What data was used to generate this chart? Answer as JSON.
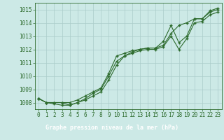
{
  "title": "Graphe pression niveau de la mer (hPa)",
  "x": [
    0,
    1,
    2,
    3,
    4,
    5,
    6,
    7,
    8,
    9,
    10,
    11,
    12,
    13,
    14,
    15,
    16,
    17,
    18,
    19,
    20,
    21,
    22,
    23
  ],
  "line_avg": [
    1008.3,
    1008.0,
    1008.0,
    1008.0,
    1008.0,
    1008.2,
    1008.5,
    1008.8,
    1009.1,
    1010.2,
    1011.5,
    1011.7,
    1011.9,
    1012.0,
    1012.1,
    1012.1,
    1012.6,
    1013.8,
    1012.5,
    1013.0,
    1014.3,
    1014.3,
    1014.8,
    1015.0
  ],
  "line_max": [
    1008.3,
    1008.0,
    1008.0,
    1008.0,
    1007.8,
    1008.0,
    1008.3,
    1008.7,
    1009.0,
    1010.0,
    1011.1,
    1011.5,
    1011.8,
    1012.0,
    1012.1,
    1012.1,
    1012.3,
    1013.2,
    1013.8,
    1014.0,
    1014.3,
    1014.3,
    1014.9,
    1015.1
  ],
  "line_min": [
    1008.3,
    1008.0,
    1007.9,
    1007.8,
    1007.8,
    1008.0,
    1008.2,
    1008.5,
    1008.8,
    1009.7,
    1010.8,
    1011.5,
    1011.7,
    1011.9,
    1012.0,
    1012.0,
    1012.2,
    1013.0,
    1012.0,
    1012.8,
    1014.0,
    1014.1,
    1014.6,
    1014.8
  ],
  "ylim": [
    1007.5,
    1015.5
  ],
  "yticks": [
    1008,
    1009,
    1010,
    1011,
    1012,
    1013,
    1014,
    1015
  ],
  "bg_color": "#cce9e6",
  "grid_color": "#aaccca",
  "line_color": "#2d6b2d",
  "title_bg": "#2d6b2d",
  "title_fg": "#ffffff",
  "tick_fontsize": 5.5,
  "title_fontsize": 6.0
}
